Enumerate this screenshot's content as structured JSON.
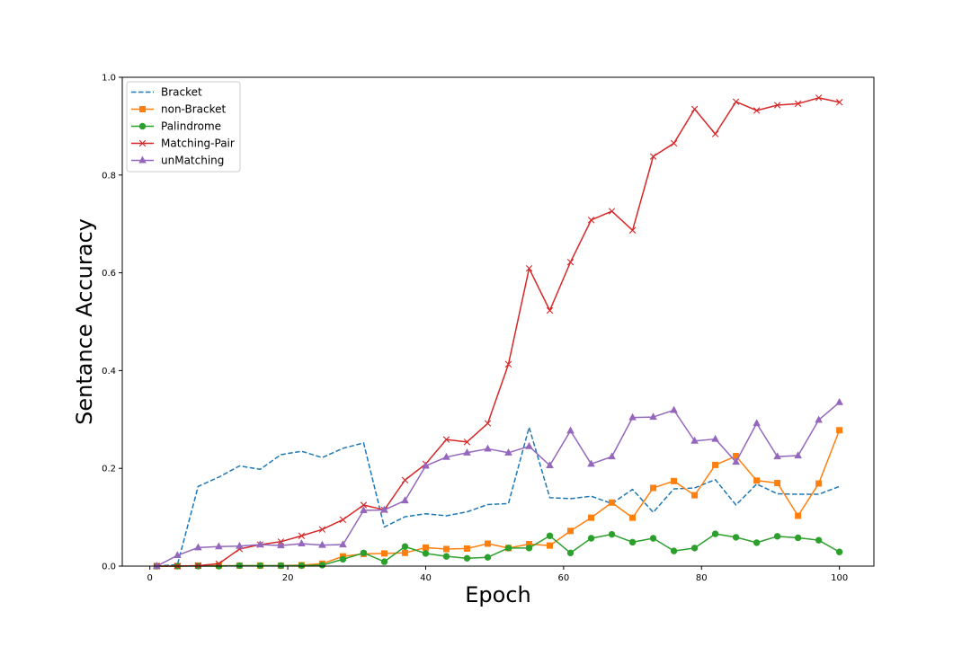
{
  "chart_data": {
    "type": "line",
    "title": "",
    "xlabel": "Epoch",
    "ylabel": "Sentance Accuracy",
    "xlim": [
      -4,
      105
    ],
    "ylim": [
      0,
      1.0
    ],
    "xticks": [
      0,
      20,
      40,
      60,
      80,
      100
    ],
    "yticks": [
      0.0,
      0.2,
      0.4,
      0.6,
      0.8,
      1.0
    ],
    "ytick_labels": [
      "0.0",
      "0.2",
      "0.4",
      "0.6",
      "0.8",
      "1.0"
    ],
    "grid": false,
    "legend_position": "upper-left",
    "x": [
      1,
      4,
      7,
      10,
      13,
      16,
      19,
      22,
      25,
      28,
      31,
      34,
      37,
      40,
      43,
      46,
      49,
      52,
      55,
      58,
      61,
      64,
      67,
      70,
      73,
      76,
      79,
      82,
      85,
      88,
      91,
      94,
      97,
      100
    ],
    "series": [
      {
        "name": "Bracket",
        "color": "#1f77b4",
        "dash": true,
        "marker": "none",
        "values": [
          0.0,
          0.003,
          0.163,
          0.182,
          0.205,
          0.198,
          0.228,
          0.235,
          0.222,
          0.241,
          0.252,
          0.08,
          0.101,
          0.107,
          0.103,
          0.111,
          0.126,
          0.128,
          0.284,
          0.14,
          0.138,
          0.143,
          0.128,
          0.157,
          0.11,
          0.158,
          0.16,
          0.177,
          0.125,
          0.168,
          0.148,
          0.147,
          0.147,
          0.163
        ]
      },
      {
        "name": "non-Bracket",
        "color": "#ff7f0e",
        "dash": false,
        "marker": "square",
        "values": [
          0.0,
          0.0,
          0.001,
          0.001,
          0.001,
          0.001,
          0.001,
          0.002,
          0.005,
          0.02,
          0.025,
          0.026,
          0.027,
          0.038,
          0.035,
          0.036,
          0.046,
          0.037,
          0.045,
          0.042,
          0.072,
          0.099,
          0.13,
          0.099,
          0.16,
          0.174,
          0.145,
          0.207,
          0.225,
          0.175,
          0.17,
          0.103,
          0.169,
          0.278
        ]
      },
      {
        "name": "Palindrome",
        "color": "#2ca02c",
        "dash": false,
        "marker": "circle",
        "values": [
          0.0,
          0.0,
          0.0,
          0.0,
          0.001,
          0.001,
          0.001,
          0.001,
          0.002,
          0.014,
          0.027,
          0.009,
          0.04,
          0.026,
          0.02,
          0.016,
          0.018,
          0.037,
          0.037,
          0.062,
          0.027,
          0.057,
          0.065,
          0.049,
          0.057,
          0.031,
          0.037,
          0.066,
          0.059,
          0.048,
          0.061,
          0.058,
          0.053,
          0.029
        ]
      },
      {
        "name": "Matching-Pair",
        "color": "#d62728",
        "dash": false,
        "marker": "x",
        "values": [
          0.0,
          0.0,
          0.001,
          0.005,
          0.035,
          0.044,
          0.05,
          0.062,
          0.075,
          0.095,
          0.125,
          0.115,
          0.176,
          0.209,
          0.259,
          0.254,
          0.292,
          0.413,
          0.609,
          0.523,
          0.622,
          0.708,
          0.726,
          0.687,
          0.838,
          0.865,
          0.935,
          0.884,
          0.95,
          0.932,
          0.943,
          0.946,
          0.958,
          0.949
        ]
      },
      {
        "name": "unMatching",
        "color": "#9467bd",
        "dash": false,
        "marker": "triangle",
        "values": [
          0.0,
          0.022,
          0.038,
          0.04,
          0.041,
          0.044,
          0.042,
          0.046,
          0.043,
          0.044,
          0.114,
          0.115,
          0.134,
          0.205,
          0.223,
          0.232,
          0.24,
          0.232,
          0.245,
          0.206,
          0.277,
          0.209,
          0.224,
          0.304,
          0.305,
          0.319,
          0.256,
          0.26,
          0.213,
          0.292,
          0.224,
          0.226,
          0.299,
          0.335
        ]
      }
    ]
  }
}
